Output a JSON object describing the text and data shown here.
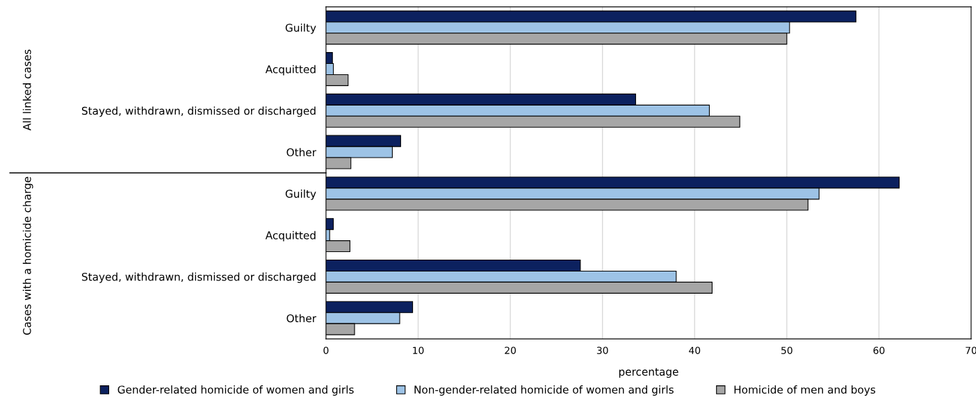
{
  "chart_data": {
    "type": "bar",
    "orientation": "horizontal",
    "categories": [
      "Guilty",
      "Acquitted",
      "Stayed, withdrawn, dismissed or discharged",
      "Other",
      "Guilty",
      "Acquitted",
      "Stayed, withdrawn, dismissed or discharged",
      "Other"
    ],
    "series": [
      {
        "name": "Gender-related homicide of women and girls",
        "color": "#0c215f",
        "values": [
          57.5,
          0.7,
          33.6,
          8.1,
          62.2,
          0.8,
          27.6,
          9.4
        ]
      },
      {
        "name": "Non-gender-related homicide of women and girls",
        "color": "#9dc3e6",
        "values": [
          50.3,
          0.8,
          41.6,
          7.2,
          53.5,
          0.4,
          38.0,
          8.0
        ]
      },
      {
        "name": "Homicide of men and boys",
        "color": "#a6a6a6",
        "values": [
          50.0,
          2.4,
          44.9,
          2.7,
          52.3,
          2.6,
          41.9,
          3.1
        ]
      }
    ],
    "annotations": [
      "All linked cases",
      "Cases with a homicide charge"
    ],
    "xlabel": "percentage",
    "xlim": [
      0,
      70
    ],
    "xticks": [
      0,
      10,
      20,
      30,
      40,
      50,
      60,
      70
    ],
    "grid": "x",
    "legend": "bottom"
  }
}
